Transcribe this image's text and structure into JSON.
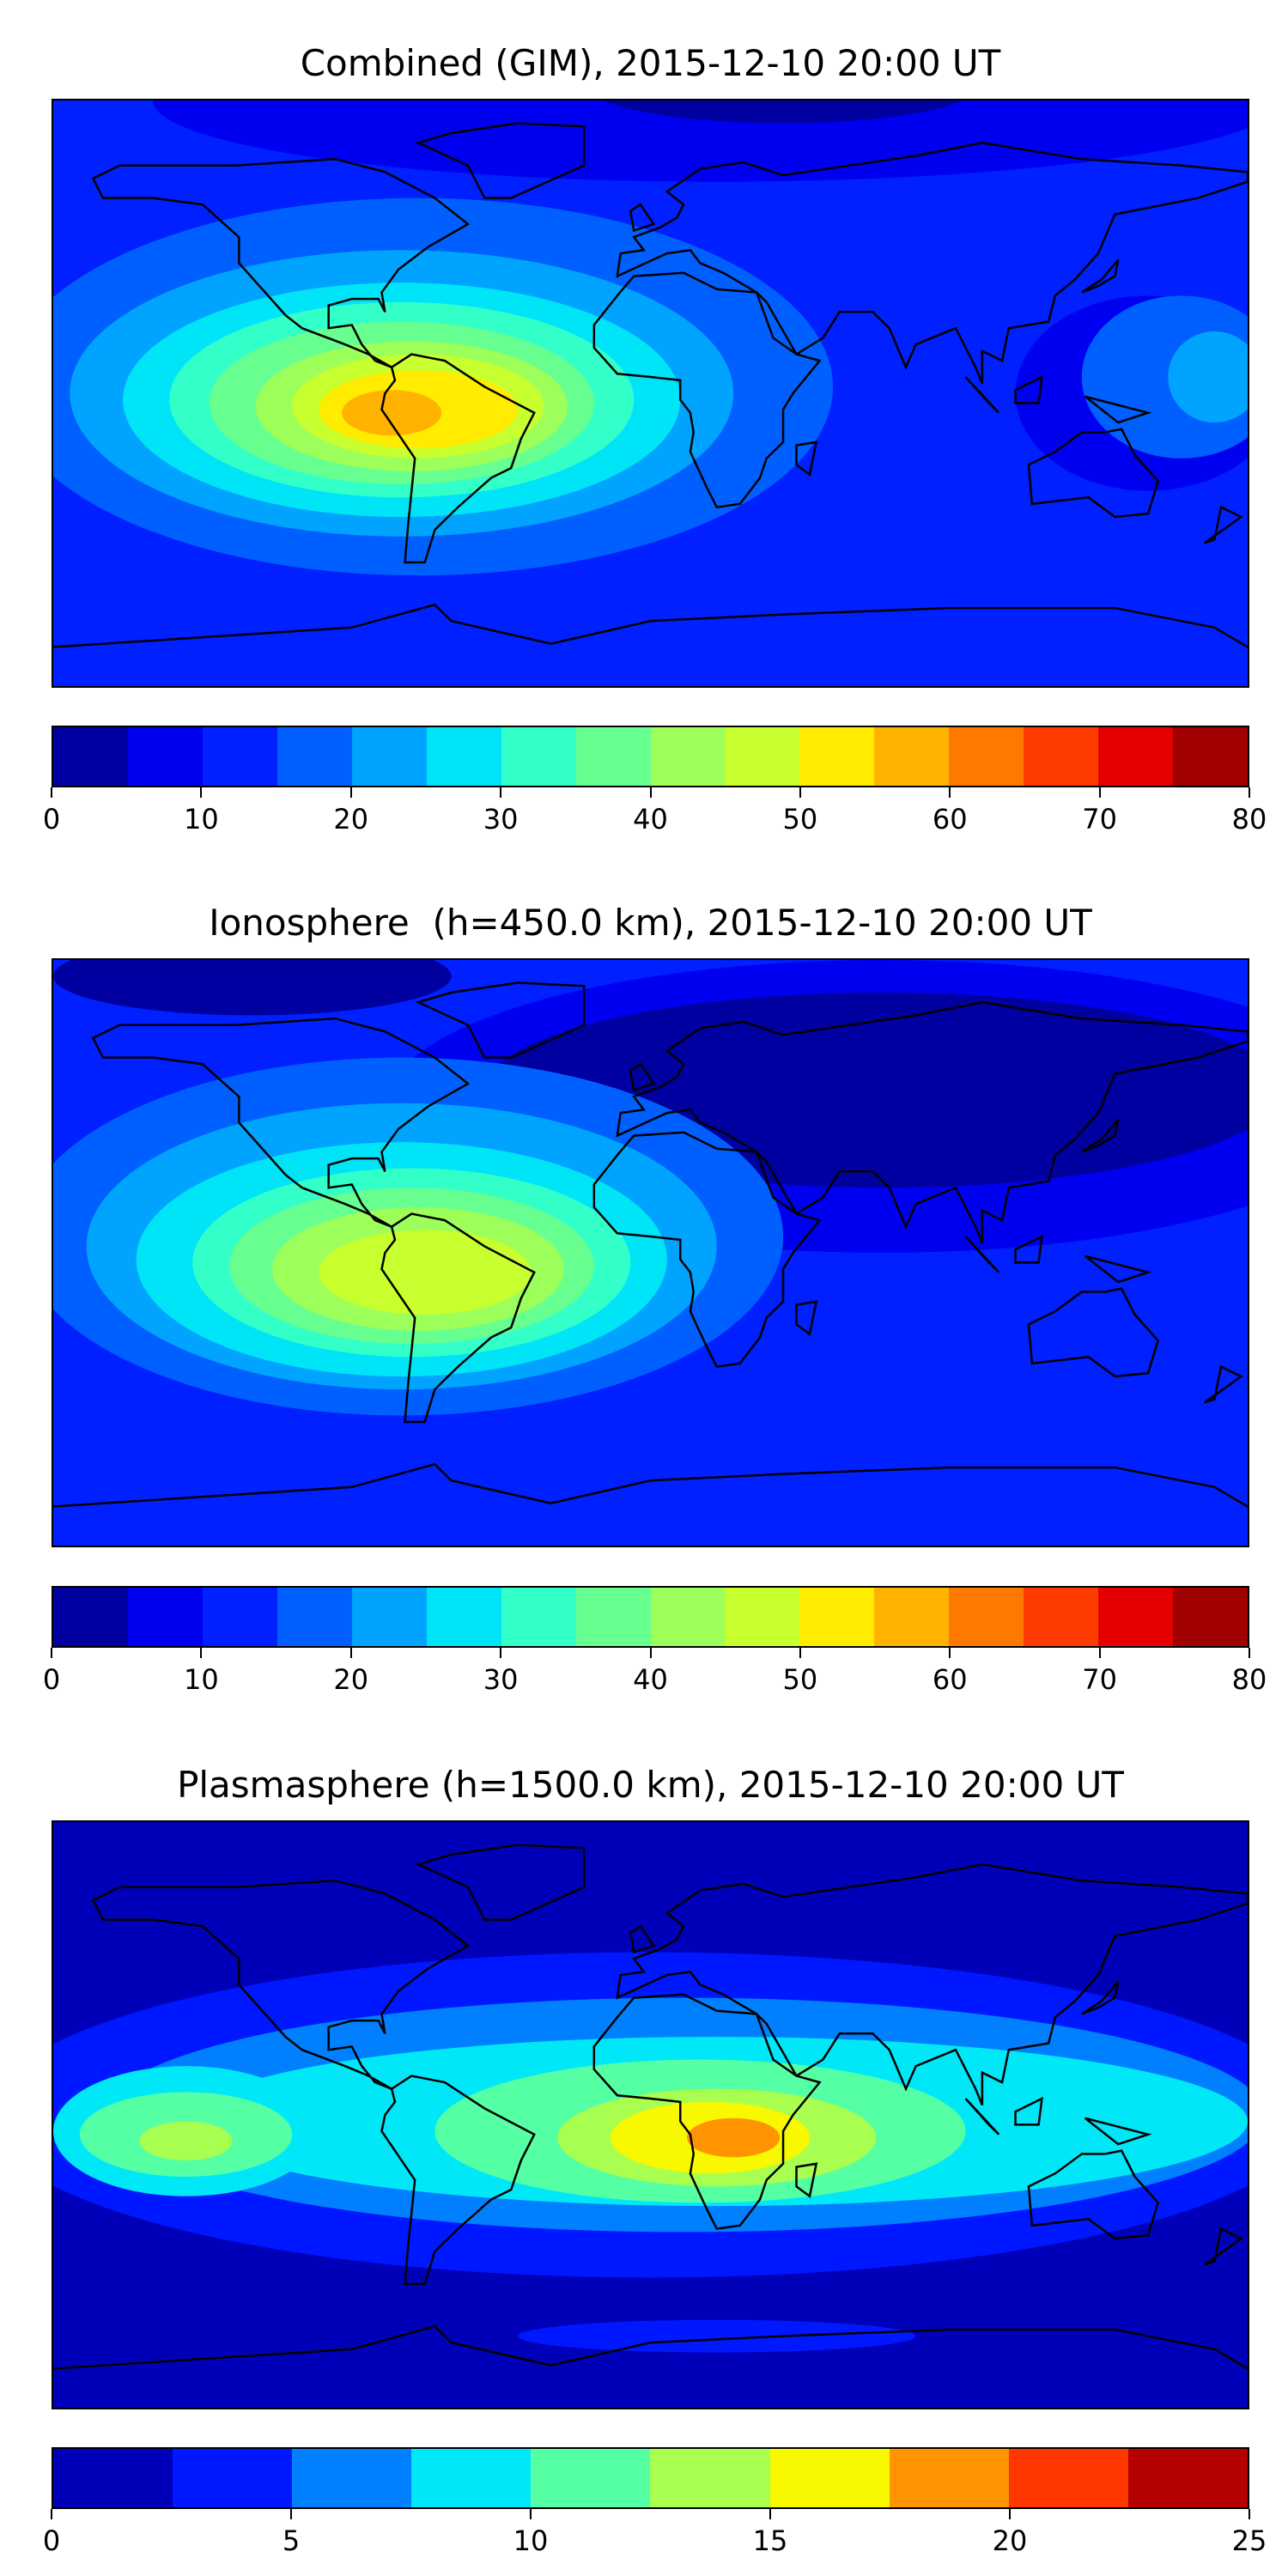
{
  "chart_data": [
    {
      "type": "heatmap",
      "title": "Combined (GIM), 2015-12-10 20:00 UT",
      "xlabel": "",
      "ylabel": "",
      "colorbar": {
        "levels": [
          0,
          5,
          10,
          15,
          20,
          25,
          30,
          35,
          40,
          45,
          50,
          55,
          60,
          65,
          70,
          75,
          80
        ],
        "colors": [
          "#0000a0",
          "#0000f0",
          "#0020ff",
          "#0060ff",
          "#00a4ff",
          "#00e4f8",
          "#33ffc8",
          "#66ff90",
          "#9cff5a",
          "#c8ff2e",
          "#ffec00",
          "#ffb300",
          "#ff7800",
          "#ff3c00",
          "#e40000",
          "#a00000"
        ],
        "ticks": [
          "0",
          "10",
          "20",
          "30",
          "40",
          "50",
          "60",
          "70",
          "80"
        ],
        "range": [
          0,
          80
        ]
      },
      "peak_region": "South America, ~55-60"
    },
    {
      "type": "heatmap",
      "title": "Ionosphere  (h=450.0 km), 2015-12-10 20:00 UT",
      "xlabel": "",
      "ylabel": "",
      "colorbar": {
        "levels": [
          0,
          5,
          10,
          15,
          20,
          25,
          30,
          35,
          40,
          45,
          50,
          55,
          60,
          65,
          70,
          75,
          80
        ],
        "colors": [
          "#0000a0",
          "#0000f0",
          "#0020ff",
          "#0060ff",
          "#00a4ff",
          "#00e4f8",
          "#33ffc8",
          "#66ff90",
          "#9cff5a",
          "#c8ff2e",
          "#ffec00",
          "#ffb300",
          "#ff7800",
          "#ff3c00",
          "#e40000",
          "#a00000"
        ],
        "ticks": [
          "0",
          "10",
          "20",
          "30",
          "40",
          "50",
          "60",
          "70",
          "80"
        ],
        "range": [
          0,
          80
        ]
      },
      "peak_region": "South America, ~45-50"
    },
    {
      "type": "heatmap",
      "title": "Plasmasphere (h=1500.0 km), 2015-12-10 20:00 UT",
      "xlabel": "",
      "ylabel": "",
      "colorbar": {
        "levels": [
          0,
          2.5,
          5,
          7.5,
          10,
          12.5,
          15,
          17.5,
          20,
          22.5,
          25
        ],
        "colors": [
          "#0000b8",
          "#0018ff",
          "#0080ff",
          "#00e8f8",
          "#55ffa3",
          "#a8ff50",
          "#f8f800",
          "#ff9400",
          "#ff3800",
          "#b40000"
        ],
        "ticks": [
          "0",
          "5",
          "10",
          "15",
          "20",
          "25"
        ],
        "range": [
          0,
          25
        ]
      },
      "peak_region": "Central Africa, ~17.5-20"
    }
  ]
}
